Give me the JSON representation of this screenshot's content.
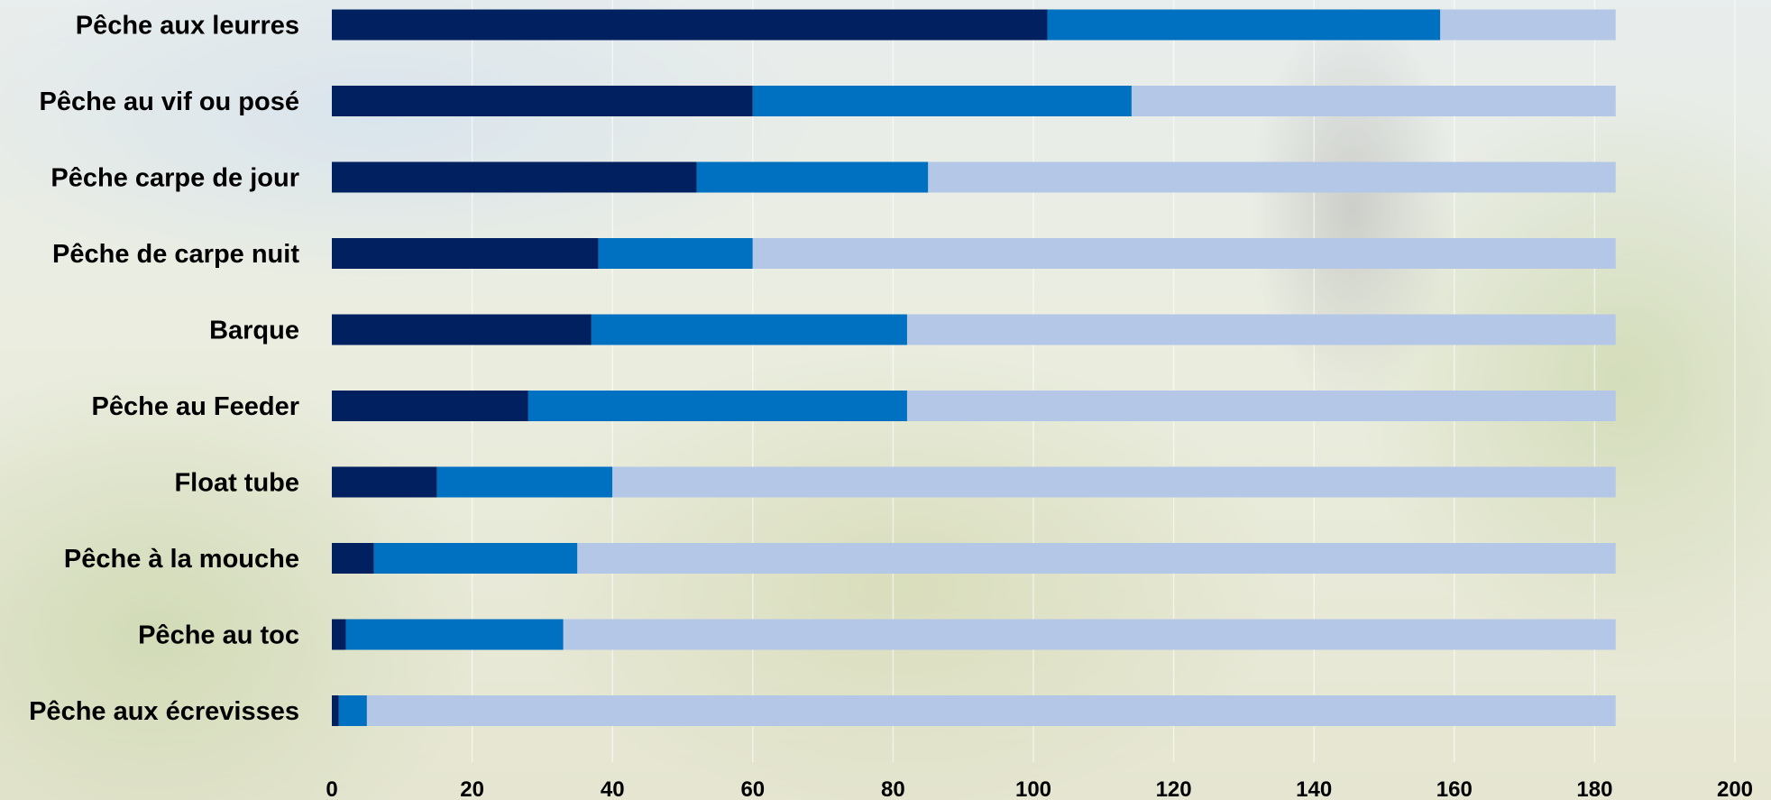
{
  "chart_data": {
    "type": "bar",
    "orientation": "horizontal",
    "stacked": true,
    "categories": [
      "Pêche aux leurres",
      "Pêche au vif ou posé",
      "Pêche carpe de jour",
      "Pêche de carpe nuit",
      "Barque",
      "Pêche au Feeder",
      "Float tube",
      "Pêche à la mouche",
      "Pêche au toc",
      "Pêche aux écrevisses"
    ],
    "series": [
      {
        "values": [
          102,
          60,
          52,
          38,
          37,
          28,
          15,
          6,
          2,
          1
        ],
        "color": "#00205f"
      },
      {
        "values": [
          56,
          54,
          33,
          22,
          45,
          54,
          25,
          29,
          31,
          4
        ],
        "color": "#0070c0"
      },
      {
        "values": [
          25,
          69,
          98,
          123,
          101,
          101,
          143,
          148,
          150,
          178
        ],
        "color": "#b4c7e7"
      }
    ],
    "xlim": [
      0,
      200
    ],
    "x_ticks": [
      "0",
      "20",
      "40",
      "60",
      "80",
      "100",
      "120",
      "140",
      "160",
      "180",
      "200"
    ],
    "xlabel": "",
    "ylabel": "",
    "title": "",
    "grid": "vertical",
    "legend": "none"
  }
}
